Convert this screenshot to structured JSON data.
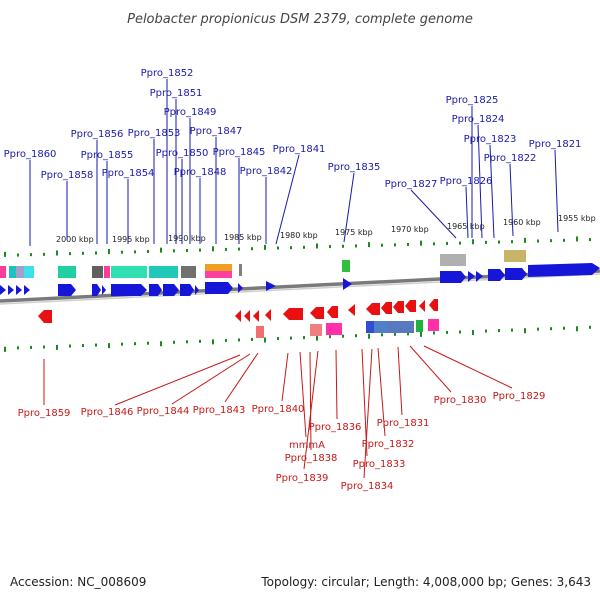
{
  "title": "Pelobacter propionicus DSM 2379, complete genome",
  "footer": {
    "accession": "Accession: NC_008609",
    "summary": "Topology: circular; Length: 4,008,000 bp; Genes: 3,643"
  },
  "colors": {
    "forward_gene": "#1616d8",
    "reverse_gene": "#e81010",
    "top_label": "#1a1aa8",
    "bottom_label": "#c81818",
    "tick": "#1a8a1a",
    "backbone": "#808080"
  },
  "scale_labels": [
    {
      "text": "2000 kbp"
    },
    {
      "text": "1995 kbp"
    },
    {
      "text": "1990 kbp"
    },
    {
      "text": "1985 kbp"
    },
    {
      "text": "1980 kbp"
    },
    {
      "text": "1975 kbp"
    },
    {
      "text": "1970 kbp"
    },
    {
      "text": "1965 kbp"
    },
    {
      "text": "1960 kbp"
    },
    {
      "text": "1955 kbp"
    }
  ],
  "forward_genes": [
    "Ppro_1860",
    "Ppro_1858",
    "Ppro_1856",
    "Ppro_1855",
    "Ppro_1854",
    "Ppro_1853",
    "Ppro_1852",
    "Ppro_1851",
    "Ppro_1850",
    "Ppro_1849",
    "Ppro_1848",
    "Ppro_1847",
    "Ppro_1845",
    "Ppro_1842",
    "Ppro_1841",
    "Ppro_1835",
    "Ppro_1827",
    "Ppro_1826",
    "Ppro_1825",
    "Ppro_1824",
    "Ppro_1823",
    "Ppro_1822",
    "Ppro_1821"
  ],
  "reverse_genes": [
    "Ppro_1859",
    "Ppro_1846",
    "Ppro_1844",
    "Ppro_1843",
    "Ppro_1840",
    "mmmA",
    "Ppro_1838",
    "Ppro_1839",
    "Ppro_1836",
    "Ppro_1833",
    "Ppro_1834",
    "Ppro_1832",
    "Ppro_1831",
    "Ppro_1830",
    "Ppro_1829"
  ]
}
